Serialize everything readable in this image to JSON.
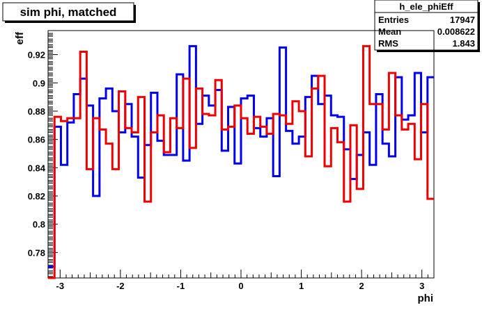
{
  "title": "sim phi, matched",
  "stats_box": {
    "name": "h_ele_phiEff",
    "rows": [
      {
        "label": "Entries",
        "value": "17947"
      },
      {
        "label": "Mean",
        "value": "0.008622"
      },
      {
        "label": "RMS",
        "value": "1.843"
      }
    ]
  },
  "chart_data": {
    "type": "line",
    "xlabel": "phi",
    "ylabel": "eff",
    "xlim": [
      -3.2,
      3.2
    ],
    "ylim": [
      0.762,
      0.937
    ],
    "x_ticks": [
      "-3",
      "-2",
      "-1",
      "0",
      "1",
      "2",
      "3"
    ],
    "y_ticks": [
      "0.78",
      "0.8",
      "0.82",
      "0.84",
      "0.86",
      "0.88",
      "0.9",
      "0.92"
    ],
    "nbins": 60,
    "legend": "none",
    "grid": false,
    "series": [
      {
        "color": "#0000ee",
        "values": [
          0.77,
          0.869,
          0.842,
          0.872,
          0.892,
          0.903,
          0.884,
          0.82,
          0.889,
          0.896,
          0.88,
          0.865,
          0.885,
          0.862,
          0.833,
          0.856,
          0.893,
          0.859,
          0.849,
          0.849,
          0.906,
          0.845,
          0.926,
          0.871,
          0.891,
          0.884,
          0.895,
          0.852,
          0.883,
          0.843,
          0.889,
          0.891,
          0.868,
          0.862,
          0.875,
          0.834,
          0.925,
          0.866,
          0.857,
          0.862,
          0.89,
          0.905,
          0.885,
          0.891,
          0.877,
          0.876,
          0.853,
          0.832,
          0.849,
          0.865,
          0.842,
          0.892,
          0.857,
          0.848,
          0.904,
          0.874,
          0.877,
          0.907,
          0.865,
          0.904
        ]
      },
      {
        "color": "#ee0000",
        "values": [
          0.762,
          0.876,
          0.873,
          0.875,
          0.875,
          0.922,
          0.839,
          0.875,
          0.867,
          0.857,
          0.839,
          0.894,
          0.868,
          0.865,
          0.89,
          0.816,
          0.865,
          0.877,
          0.851,
          0.875,
          0.868,
          0.903,
          0.854,
          0.896,
          0.878,
          0.877,
          0.902,
          0.867,
          0.869,
          0.884,
          0.875,
          0.864,
          0.876,
          0.869,
          0.864,
          0.878,
          0.877,
          0.871,
          0.887,
          0.88,
          0.848,
          0.896,
          0.905,
          0.841,
          0.868,
          0.858,
          0.816,
          0.87,
          0.825,
          0.926,
          0.885,
          0.885,
          0.867,
          0.907,
          0.877,
          0.867,
          0.871,
          0.846,
          0.885,
          0.818
        ]
      }
    ]
  }
}
